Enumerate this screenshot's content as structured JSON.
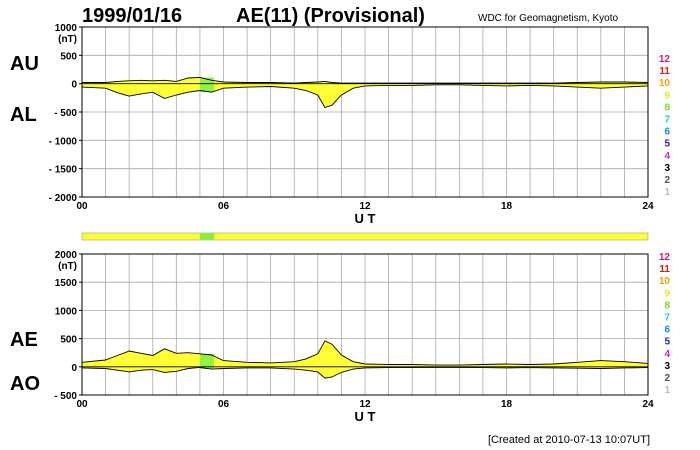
{
  "header": {
    "date": "1999/01/16",
    "title": "AE(11) (Provisional)",
    "source": "WDC for Geomagnetism, Kyoto"
  },
  "footer": {
    "created": "[Created at 2010-07-13 10:07UT]"
  },
  "colors": {
    "fill": "#ffff33",
    "fill_high": "#88ee44",
    "grid": "#aaaaaa",
    "line": "#000000"
  },
  "activity_scale": {
    "levels": [
      "12",
      "11",
      "10",
      "9",
      "8",
      "7",
      "6",
      "5",
      "4",
      "3",
      "2",
      "1"
    ],
    "colors": [
      "#e0127a",
      "#ee1111",
      "#f0a000",
      "#ddee22",
      "#77dd22",
      "#22cccc",
      "#1188ee",
      "#2222cc",
      "#cc22cc",
      "#000000",
      "#555555",
      "#bbbbbb"
    ]
  },
  "chart_data": [
    {
      "type": "area",
      "name": "AU/AL panel",
      "units": "(nT)",
      "labels_left": [
        "AU",
        "AL"
      ],
      "ylim": [
        -2000,
        1000
      ],
      "yticks": [
        1000,
        500,
        0,
        -500,
        -1000,
        -1500,
        -2000
      ],
      "ytick_labels": [
        "1000",
        "500",
        "0",
        "- 500",
        "- 1000",
        "- 1500",
        "- 2000"
      ],
      "xlim": [
        0,
        24
      ],
      "xticks": [
        0,
        6,
        12,
        18,
        24
      ],
      "xtick_labels": [
        "00",
        "06",
        "12",
        "18",
        "24"
      ],
      "xlabel": "U T",
      "grid": true,
      "x": [
        0,
        1,
        1.5,
        2,
        2.5,
        3,
        3.5,
        4,
        4.5,
        5,
        5.5,
        6,
        7,
        8,
        9,
        9.5,
        10,
        10.3,
        10.6,
        11,
        11.5,
        12,
        13,
        14,
        15,
        16,
        17,
        18,
        19,
        20,
        21,
        22,
        23,
        24
      ],
      "upper": [
        20,
        20,
        40,
        50,
        60,
        50,
        60,
        40,
        100,
        110,
        60,
        30,
        20,
        20,
        10,
        20,
        30,
        40,
        20,
        10,
        10,
        10,
        10,
        10,
        10,
        10,
        10,
        10,
        10,
        10,
        20,
        30,
        30,
        20
      ],
      "lower": [
        -60,
        -80,
        -160,
        -220,
        -180,
        -150,
        -260,
        -200,
        -150,
        -120,
        -150,
        -80,
        -60,
        -50,
        -80,
        -120,
        -200,
        -420,
        -380,
        -200,
        -80,
        -40,
        -30,
        -30,
        -20,
        -20,
        -30,
        -40,
        -30,
        -40,
        -60,
        -80,
        -60,
        -40
      ],
      "highlight_x": [
        5,
        5.6
      ]
    },
    {
      "type": "area",
      "name": "AE/AO panel",
      "units": "(nT)",
      "labels_left": [
        "AE",
        "AO"
      ],
      "ylim": [
        -500,
        2000
      ],
      "yticks": [
        2000,
        1500,
        1000,
        500,
        0,
        -500
      ],
      "ytick_labels": [
        "2000",
        "1500",
        "1000",
        "500",
        "0",
        "- 500"
      ],
      "xlim": [
        0,
        24
      ],
      "xticks": [
        0,
        6,
        12,
        18,
        24
      ],
      "xtick_labels": [
        "00",
        "06",
        "12",
        "18",
        "24"
      ],
      "xlabel": "U T",
      "grid": true,
      "x": [
        0,
        1,
        1.5,
        2,
        2.5,
        3,
        3.5,
        4,
        4.5,
        5,
        5.5,
        6,
        7,
        8,
        9,
        9.5,
        10,
        10.3,
        10.6,
        11,
        11.5,
        12,
        13,
        14,
        15,
        16,
        17,
        18,
        19,
        20,
        21,
        22,
        23,
        24
      ],
      "upper": [
        80,
        120,
        200,
        280,
        240,
        200,
        320,
        240,
        250,
        230,
        210,
        110,
        80,
        70,
        90,
        140,
        230,
        460,
        400,
        210,
        90,
        50,
        40,
        40,
        30,
        30,
        40,
        50,
        40,
        50,
        80,
        110,
        90,
        60
      ],
      "lower": [
        -20,
        -30,
        -60,
        -90,
        -60,
        -50,
        -100,
        -80,
        -30,
        -10,
        -40,
        -30,
        -20,
        -20,
        -40,
        -60,
        -90,
        -200,
        -180,
        -100,
        -40,
        -20,
        -15,
        -15,
        -10,
        -10,
        -15,
        -20,
        -15,
        -20,
        -25,
        -30,
        -20,
        -15
      ],
      "highlight_x": [
        5,
        5.6
      ]
    }
  ]
}
